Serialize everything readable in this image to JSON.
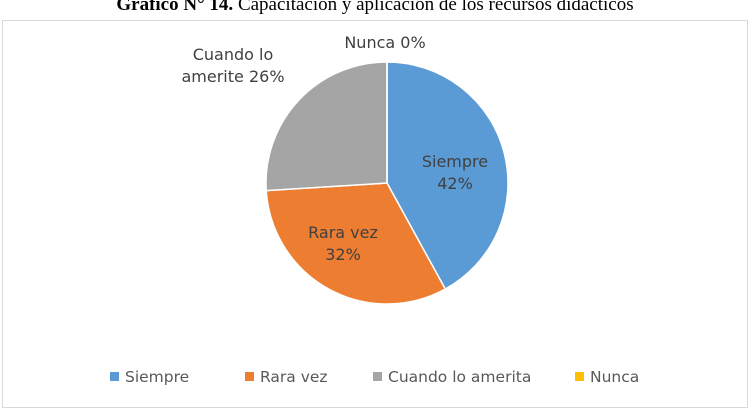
{
  "chart_data": {
    "type": "pie",
    "title_label": "Gráfico N° 14.",
    "title": "Capacitación y aplicación de los recursos didácticos",
    "categories": [
      "Siempre",
      "Rara vez",
      "Cuando lo amerita",
      "Nunca"
    ],
    "values": [
      42,
      32,
      26,
      0
    ],
    "label_names": [
      "Siempre",
      "Rara vez",
      "Cuando lo amerite",
      "Nunca"
    ],
    "value_labels": [
      "42%",
      "32%",
      "26%",
      "0%"
    ],
    "colors": [
      "#5b9bd5",
      "#ed7d31",
      "#a5a5a5",
      "#ffc000"
    ],
    "legend": "bottom"
  }
}
